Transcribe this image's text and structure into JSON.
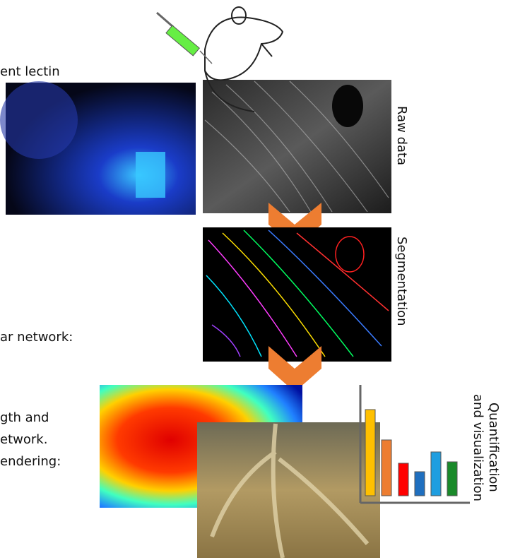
{
  "left_text": {
    "line_1": "ent lectin",
    "line_2": "ar network:",
    "line_3": "gth and",
    "line_4": "etwork.",
    "line_5": "endering:"
  },
  "steps": {
    "raw": "Raw data",
    "segmentation": "Segmentation",
    "quantification_1": "Quantification",
    "quantification_2": "and visualization"
  }
}
